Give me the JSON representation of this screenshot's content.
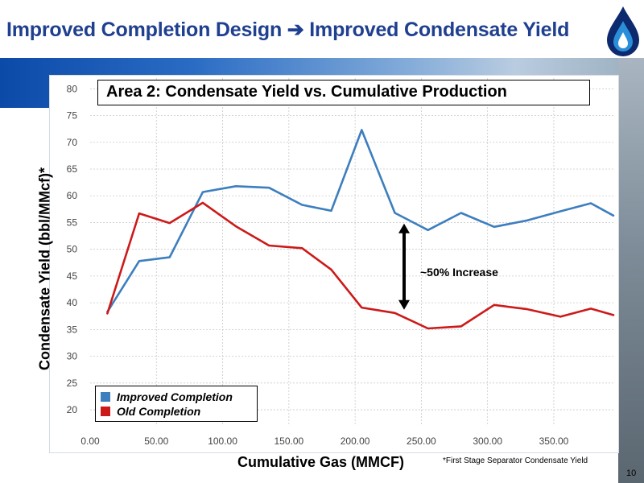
{
  "slide": {
    "title": "Improved Completion Design ➔ Improved Condensate Yield",
    "page_number": "10",
    "footnote": "*First Stage Separator Condensate Yield"
  },
  "logo": {
    "icon": "flame-drop-logo-icon",
    "colors": [
      "#0d2a6e",
      "#2a8fd8"
    ]
  },
  "chart_data": {
    "type": "line",
    "title": "Area 2: Condensate Yield vs. Cumulative Production",
    "xlabel": "Cumulative Gas (MMCF)",
    "ylabel": "Condensate Yield (bbl/MMcf)*",
    "xlim": [
      0,
      395
    ],
    "ylim": [
      17,
      82
    ],
    "x_ticks": [
      "0.00",
      "50.00",
      "100.00",
      "150.00",
      "200.00",
      "250.00",
      "300.00",
      "350.00"
    ],
    "x_tick_values": [
      0,
      50,
      100,
      150,
      200,
      250,
      300,
      350
    ],
    "y_ticks": [
      20,
      25,
      30,
      35,
      40,
      45,
      50,
      55,
      60,
      65,
      70,
      75,
      80
    ],
    "grid": true,
    "legend_position": "bottom-left",
    "annotation": "~50% Increase",
    "annotation_arrow": {
      "x": 237,
      "y_from": 39.0,
      "y_to": 54.5
    },
    "series": [
      {
        "name": "Improved Completion",
        "color": "#3d7ebf",
        "x": [
          13,
          37,
          60,
          85,
          110,
          135,
          160,
          182,
          205,
          230,
          255,
          280,
          305,
          330,
          355,
          378,
          395
        ],
        "y": [
          38.3,
          47.8,
          48.5,
          60.7,
          61.8,
          61.5,
          58.3,
          57.2,
          72.3,
          56.8,
          53.6,
          56.8,
          54.2,
          55.4,
          57.1,
          58.6,
          56.3
        ]
      },
      {
        "name": "Old Completion",
        "color": "#cc1a1a",
        "x": [
          13,
          37,
          60,
          85,
          110,
          135,
          160,
          182,
          205,
          230,
          255,
          280,
          305,
          330,
          355,
          378,
          395
        ],
        "y": [
          38.0,
          56.7,
          54.9,
          58.7,
          54.3,
          50.7,
          50.2,
          46.2,
          39.1,
          38.1,
          35.2,
          35.6,
          39.6,
          38.8,
          37.4,
          38.9,
          37.7
        ]
      }
    ]
  }
}
